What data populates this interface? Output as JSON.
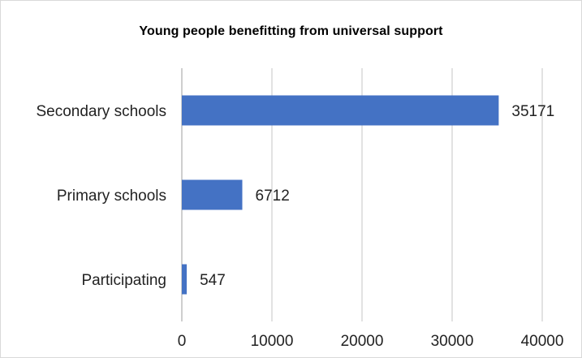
{
  "chart_data": {
    "type": "bar",
    "orientation": "horizontal",
    "title": "Young people benefitting from universal support",
    "xlabel": "",
    "ylabel": "",
    "categories": [
      "Secondary schools",
      "Primary schools",
      "Participating"
    ],
    "values": [
      35171,
      6712,
      547
    ],
    "data_labels": [
      "35171",
      "6712",
      "547"
    ],
    "xlim": [
      0,
      40000
    ],
    "x_ticks": [
      0,
      10000,
      20000,
      30000,
      40000
    ],
    "x_tick_labels": [
      "0",
      "10000",
      "20000",
      "30000",
      "40000"
    ],
    "grid": "vertical",
    "legend": "none",
    "colors": {
      "bar": "#4472c4",
      "gridline": "#d9d9d9",
      "text": "#222222"
    }
  }
}
